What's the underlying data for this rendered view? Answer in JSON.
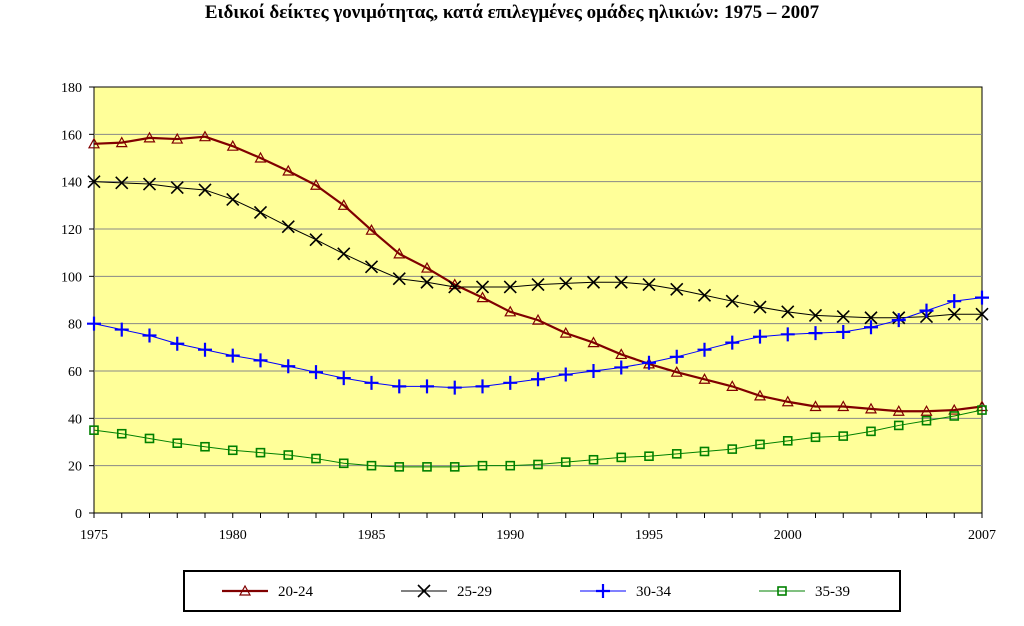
{
  "chart_data": {
    "type": "line",
    "title": "Ειδικοί δείκτες γονιμότητας, κατά επιλεγμένες ομάδες ηλικιών: 1975 – 2007",
    "xlabel": "",
    "ylabel": "",
    "xlim": [
      1975,
      2007
    ],
    "ylim": [
      0,
      180
    ],
    "x_ticks": [
      "1975",
      "1980",
      "1985",
      "1990",
      "1995",
      "2000",
      "2007"
    ],
    "y_ticks": [
      "0",
      "20",
      "40",
      "60",
      "80",
      "100",
      "120",
      "140",
      "160",
      "180"
    ],
    "grid": true,
    "legend_position": "bottom",
    "plot_background": "#FFFF99",
    "x": [
      1975,
      1976,
      1977,
      1978,
      1979,
      1980,
      1981,
      1982,
      1983,
      1984,
      1985,
      1986,
      1987,
      1988,
      1989,
      1990,
      1991,
      1992,
      1993,
      1994,
      1995,
      1996,
      1997,
      1998,
      1999,
      2000,
      2001,
      2002,
      2003,
      2004,
      2005,
      2006,
      2007
    ],
    "series": [
      {
        "name": "20-24",
        "color": "#800000",
        "marker": "triangle",
        "values": [
          156,
          156.5,
          158.5,
          158,
          159,
          155,
          150,
          144.5,
          138.5,
          130,
          119.5,
          109.5,
          103.5,
          96.5,
          91,
          85,
          81.5,
          76,
          72,
          67,
          63,
          59.5,
          56.5,
          53.5,
          49.5,
          47,
          45,
          45,
          44,
          43,
          43,
          43.5,
          45
        ]
      },
      {
        "name": "25-29",
        "color": "#000000",
        "marker": "x",
        "values": [
          140,
          139.5,
          139,
          137.5,
          136.5,
          132.5,
          127,
          121,
          115.5,
          109.5,
          104,
          99,
          97.5,
          95.5,
          95.5,
          95.5,
          96.5,
          97,
          97.5,
          97.5,
          96.5,
          94.5,
          92,
          89.5,
          87,
          85,
          83.5,
          83,
          82.5,
          82.5,
          83,
          84,
          84
        ]
      },
      {
        "name": "30-34",
        "color": "#0000FF",
        "marker": "plus",
        "values": [
          80,
          77.5,
          75,
          71.5,
          69,
          66.5,
          64.5,
          62,
          59.5,
          57,
          55,
          53.5,
          53.5,
          53,
          53.5,
          55,
          56.5,
          58.5,
          60,
          61.5,
          63.5,
          66,
          69,
          72,
          74.5,
          75.5,
          76,
          76.5,
          78.5,
          81.5,
          85.5,
          89.5,
          91
        ]
      },
      {
        "name": "35-39",
        "color": "#008000",
        "marker": "square",
        "values": [
          35,
          33.5,
          31.5,
          29.5,
          28,
          26.5,
          25.5,
          24.5,
          23,
          21,
          20,
          19.5,
          19.5,
          19.5,
          20,
          20,
          20.5,
          21.5,
          22.5,
          23.5,
          24,
          25,
          26,
          27,
          29,
          30.5,
          32,
          32.5,
          34.5,
          37,
          39,
          41,
          43.5
        ]
      }
    ]
  }
}
